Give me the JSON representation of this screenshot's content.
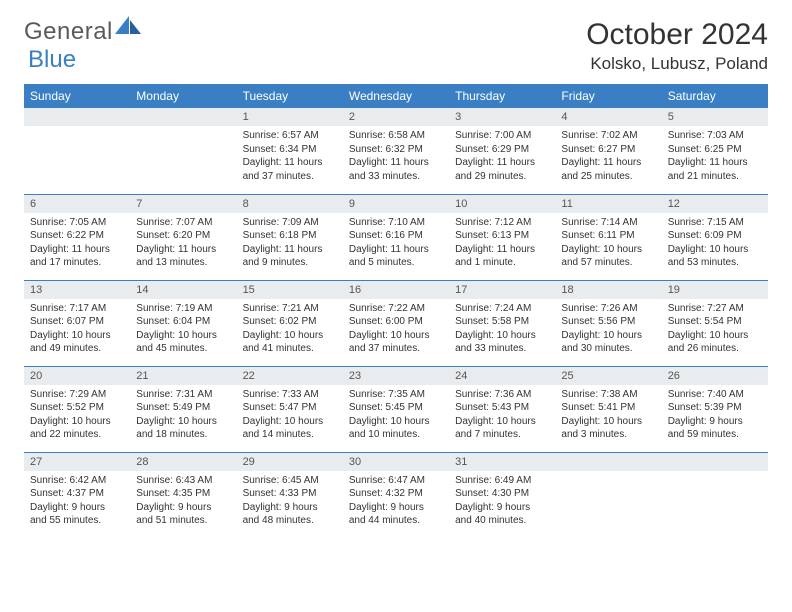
{
  "logo": {
    "text1": "General",
    "text2": "Blue"
  },
  "title": "October 2024",
  "location": "Kolsko, Lubusz, Poland",
  "colors": {
    "header_bg": "#3a7fc4",
    "daynum_bg": "#e9ecef",
    "text": "#333333"
  },
  "typography": {
    "title_fontsize": 30,
    "location_fontsize": 17,
    "dayhead_fontsize": 12,
    "cell_fontsize": 10
  },
  "day_headers": [
    "Sunday",
    "Monday",
    "Tuesday",
    "Wednesday",
    "Thursday",
    "Friday",
    "Saturday"
  ],
  "weeks": [
    [
      {
        "empty": true
      },
      {
        "empty": true
      },
      {
        "num": "1",
        "sunrise": "Sunrise: 6:57 AM",
        "sunset": "Sunset: 6:34 PM",
        "daylight": "Daylight: 11 hours and 37 minutes."
      },
      {
        "num": "2",
        "sunrise": "Sunrise: 6:58 AM",
        "sunset": "Sunset: 6:32 PM",
        "daylight": "Daylight: 11 hours and 33 minutes."
      },
      {
        "num": "3",
        "sunrise": "Sunrise: 7:00 AM",
        "sunset": "Sunset: 6:29 PM",
        "daylight": "Daylight: 11 hours and 29 minutes."
      },
      {
        "num": "4",
        "sunrise": "Sunrise: 7:02 AM",
        "sunset": "Sunset: 6:27 PM",
        "daylight": "Daylight: 11 hours and 25 minutes."
      },
      {
        "num": "5",
        "sunrise": "Sunrise: 7:03 AM",
        "sunset": "Sunset: 6:25 PM",
        "daylight": "Daylight: 11 hours and 21 minutes."
      }
    ],
    [
      {
        "num": "6",
        "sunrise": "Sunrise: 7:05 AM",
        "sunset": "Sunset: 6:22 PM",
        "daylight": "Daylight: 11 hours and 17 minutes."
      },
      {
        "num": "7",
        "sunrise": "Sunrise: 7:07 AM",
        "sunset": "Sunset: 6:20 PM",
        "daylight": "Daylight: 11 hours and 13 minutes."
      },
      {
        "num": "8",
        "sunrise": "Sunrise: 7:09 AM",
        "sunset": "Sunset: 6:18 PM",
        "daylight": "Daylight: 11 hours and 9 minutes."
      },
      {
        "num": "9",
        "sunrise": "Sunrise: 7:10 AM",
        "sunset": "Sunset: 6:16 PM",
        "daylight": "Daylight: 11 hours and 5 minutes."
      },
      {
        "num": "10",
        "sunrise": "Sunrise: 7:12 AM",
        "sunset": "Sunset: 6:13 PM",
        "daylight": "Daylight: 11 hours and 1 minute."
      },
      {
        "num": "11",
        "sunrise": "Sunrise: 7:14 AM",
        "sunset": "Sunset: 6:11 PM",
        "daylight": "Daylight: 10 hours and 57 minutes."
      },
      {
        "num": "12",
        "sunrise": "Sunrise: 7:15 AM",
        "sunset": "Sunset: 6:09 PM",
        "daylight": "Daylight: 10 hours and 53 minutes."
      }
    ],
    [
      {
        "num": "13",
        "sunrise": "Sunrise: 7:17 AM",
        "sunset": "Sunset: 6:07 PM",
        "daylight": "Daylight: 10 hours and 49 minutes."
      },
      {
        "num": "14",
        "sunrise": "Sunrise: 7:19 AM",
        "sunset": "Sunset: 6:04 PM",
        "daylight": "Daylight: 10 hours and 45 minutes."
      },
      {
        "num": "15",
        "sunrise": "Sunrise: 7:21 AM",
        "sunset": "Sunset: 6:02 PM",
        "daylight": "Daylight: 10 hours and 41 minutes."
      },
      {
        "num": "16",
        "sunrise": "Sunrise: 7:22 AM",
        "sunset": "Sunset: 6:00 PM",
        "daylight": "Daylight: 10 hours and 37 minutes."
      },
      {
        "num": "17",
        "sunrise": "Sunrise: 7:24 AM",
        "sunset": "Sunset: 5:58 PM",
        "daylight": "Daylight: 10 hours and 33 minutes."
      },
      {
        "num": "18",
        "sunrise": "Sunrise: 7:26 AM",
        "sunset": "Sunset: 5:56 PM",
        "daylight": "Daylight: 10 hours and 30 minutes."
      },
      {
        "num": "19",
        "sunrise": "Sunrise: 7:27 AM",
        "sunset": "Sunset: 5:54 PM",
        "daylight": "Daylight: 10 hours and 26 minutes."
      }
    ],
    [
      {
        "num": "20",
        "sunrise": "Sunrise: 7:29 AM",
        "sunset": "Sunset: 5:52 PM",
        "daylight": "Daylight: 10 hours and 22 minutes."
      },
      {
        "num": "21",
        "sunrise": "Sunrise: 7:31 AM",
        "sunset": "Sunset: 5:49 PM",
        "daylight": "Daylight: 10 hours and 18 minutes."
      },
      {
        "num": "22",
        "sunrise": "Sunrise: 7:33 AM",
        "sunset": "Sunset: 5:47 PM",
        "daylight": "Daylight: 10 hours and 14 minutes."
      },
      {
        "num": "23",
        "sunrise": "Sunrise: 7:35 AM",
        "sunset": "Sunset: 5:45 PM",
        "daylight": "Daylight: 10 hours and 10 minutes."
      },
      {
        "num": "24",
        "sunrise": "Sunrise: 7:36 AM",
        "sunset": "Sunset: 5:43 PM",
        "daylight": "Daylight: 10 hours and 7 minutes."
      },
      {
        "num": "25",
        "sunrise": "Sunrise: 7:38 AM",
        "sunset": "Sunset: 5:41 PM",
        "daylight": "Daylight: 10 hours and 3 minutes."
      },
      {
        "num": "26",
        "sunrise": "Sunrise: 7:40 AM",
        "sunset": "Sunset: 5:39 PM",
        "daylight": "Daylight: 9 hours and 59 minutes."
      }
    ],
    [
      {
        "num": "27",
        "sunrise": "Sunrise: 6:42 AM",
        "sunset": "Sunset: 4:37 PM",
        "daylight": "Daylight: 9 hours and 55 minutes."
      },
      {
        "num": "28",
        "sunrise": "Sunrise: 6:43 AM",
        "sunset": "Sunset: 4:35 PM",
        "daylight": "Daylight: 9 hours and 51 minutes."
      },
      {
        "num": "29",
        "sunrise": "Sunrise: 6:45 AM",
        "sunset": "Sunset: 4:33 PM",
        "daylight": "Daylight: 9 hours and 48 minutes."
      },
      {
        "num": "30",
        "sunrise": "Sunrise: 6:47 AM",
        "sunset": "Sunset: 4:32 PM",
        "daylight": "Daylight: 9 hours and 44 minutes."
      },
      {
        "num": "31",
        "sunrise": "Sunrise: 6:49 AM",
        "sunset": "Sunset: 4:30 PM",
        "daylight": "Daylight: 9 hours and 40 minutes."
      },
      {
        "empty": true
      },
      {
        "empty": true
      }
    ]
  ]
}
